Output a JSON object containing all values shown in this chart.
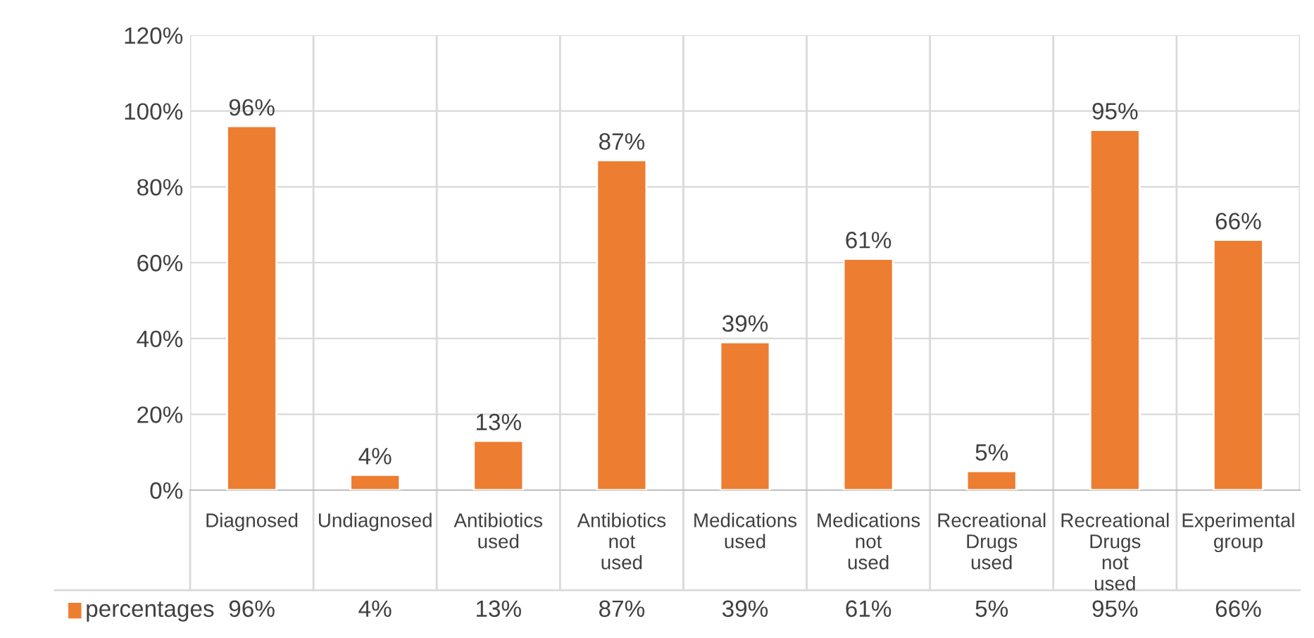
{
  "chart_data": {
    "type": "bar",
    "categories": [
      "Diagnosed",
      "Undiagnosed",
      "Antibiotics used",
      "Antibiotics not used",
      "Medications used",
      "Medications  not used",
      "Recreational Drugs used",
      "Recreational Drugs not used",
      "Experimental group"
    ],
    "series": [
      {
        "name": "percentages",
        "color": "#ed7d31",
        "values": [
          96,
          4,
          13,
          87,
          39,
          61,
          5,
          95,
          66
        ],
        "value_labels": [
          "96%",
          "4%",
          "13%",
          "87%",
          "39%",
          "61%",
          "5%",
          "95%",
          "66%"
        ]
      }
    ],
    "ylim": [
      0,
      120
    ],
    "yticks": [
      {
        "value": 0,
        "label": "0%"
      },
      {
        "value": 20,
        "label": "20%"
      },
      {
        "value": 40,
        "label": "40%"
      },
      {
        "value": 60,
        "label": "60%"
      },
      {
        "value": 80,
        "label": "80%"
      },
      {
        "value": 100,
        "label": "100%"
      },
      {
        "value": 120,
        "label": "120%"
      }
    ],
    "grid": true,
    "legend": "bottom"
  }
}
